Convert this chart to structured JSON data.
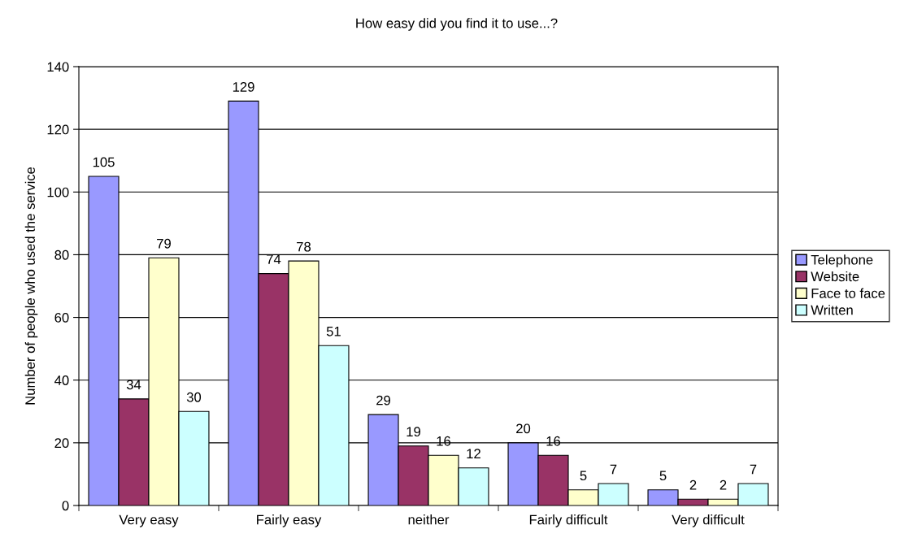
{
  "chart_data": {
    "type": "bar",
    "title": "How easy did you find it to use...?",
    "ylabel": "Number of people who used the service",
    "categories": [
      "Very easy",
      "Fairly easy",
      "neither",
      "Fairly difficult",
      "Very difficult"
    ],
    "series": [
      {
        "name": "Telephone",
        "color": "#9999ff",
        "values": [
          105,
          129,
          29,
          20,
          5
        ]
      },
      {
        "name": "Website",
        "color": "#993366",
        "values": [
          34,
          74,
          19,
          16,
          2
        ]
      },
      {
        "name": "Face to face",
        "color": "#ffffcc",
        "values": [
          79,
          78,
          16,
          5,
          2
        ]
      },
      {
        "name": "Written",
        "color": "#ccffff",
        "values": [
          30,
          51,
          12,
          7,
          7
        ]
      }
    ],
    "ylim": [
      0,
      140
    ],
    "yticks": [
      0,
      20,
      40,
      60,
      80,
      100,
      120,
      140
    ],
    "grid": "y",
    "legend": "right",
    "data_labels": true
  }
}
